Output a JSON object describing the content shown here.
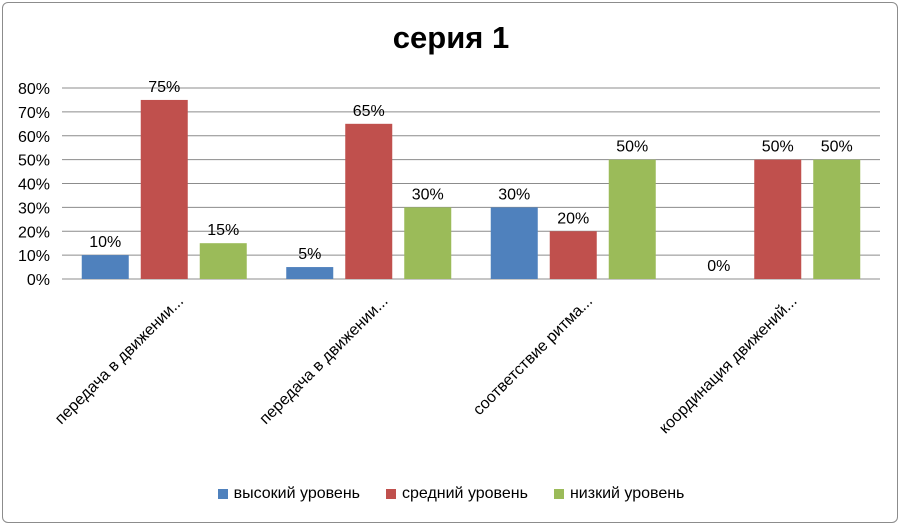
{
  "chart_data": {
    "type": "bar",
    "title": "серия 1",
    "categories": [
      "передача в движении...",
      "передача в движении...",
      "соответствие ритма...",
      "координация движений..."
    ],
    "series": [
      {
        "name": "высокий уровень",
        "color": "#4f81bd",
        "values": [
          10,
          5,
          30,
          0
        ]
      },
      {
        "name": "средний уровень",
        "color": "#c0504d",
        "values": [
          75,
          65,
          20,
          50
        ]
      },
      {
        "name": "низкий уровень",
        "color": "#9bbb59",
        "values": [
          15,
          30,
          50,
          50
        ]
      }
    ],
    "y_ticks": [
      "0%",
      "10%",
      "20%",
      "30%",
      "40%",
      "50%",
      "60%",
      "70%",
      "80%"
    ],
    "ylim": [
      0,
      80
    ],
    "value_suffix": "%",
    "grid": true,
    "legend_position": "bottom"
  }
}
